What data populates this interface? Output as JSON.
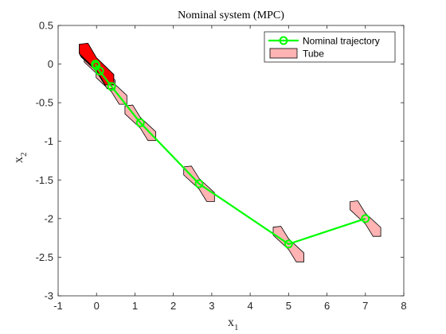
{
  "chart_data": {
    "type": "line",
    "title": "Nominal system (MPC)",
    "xlabel": {
      "main": "x",
      "sub": "1"
    },
    "ylabel": {
      "main": "x",
      "sub": "2"
    },
    "xlim": [
      -1,
      8
    ],
    "ylim": [
      -3,
      0.5
    ],
    "xticks": [
      -1,
      0,
      1,
      2,
      3,
      4,
      5,
      6,
      7,
      8
    ],
    "xtick_labels": [
      "-1",
      "0",
      "1",
      "2",
      "3",
      "4",
      "5",
      "6",
      "7",
      "8"
    ],
    "yticks": [
      0.5,
      0,
      -0.5,
      -1,
      -1.5,
      -2,
      -2.5,
      -3
    ],
    "ytick_labels": [
      "0.5",
      "0",
      "-0.5",
      "-1",
      "-1.5",
      "-2",
      "-2.5",
      "-3"
    ],
    "grid": false,
    "legend_position": "top-right",
    "series": [
      {
        "name": "Nominal trajectory",
        "color": "#00ff00",
        "marker": "circle",
        "x": [
          7.0,
          5.0,
          2.67,
          1.14,
          0.39,
          0.08,
          -0.01,
          -0.03
        ],
        "y": [
          -2.0,
          -2.33,
          -1.55,
          -0.76,
          -0.29,
          -0.09,
          -0.02,
          0.0
        ]
      }
    ],
    "tubes": {
      "name": "Tube",
      "fill": "#ffb3b3",
      "edge": "#000000",
      "half_width_x": 0.4,
      "half_height_y": 0.23
    },
    "terminal_set": {
      "fill": "#ff0000",
      "edge": "#000000",
      "center": [
        0,
        0
      ],
      "half_width_x": 0.45,
      "half_height_y": 0.27
    }
  }
}
